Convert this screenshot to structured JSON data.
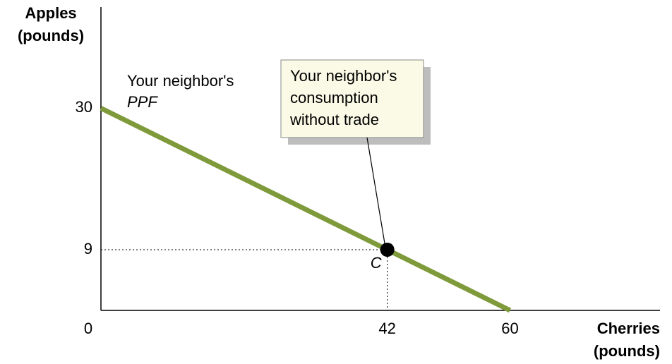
{
  "chart_data": {
    "type": "line",
    "x_label": [
      "Cherries",
      "(pounds)"
    ],
    "y_label": [
      "Apples",
      "(pounds)"
    ],
    "x": [
      0,
      60
    ],
    "series": [
      {
        "name": [
          "Your neighbor's",
          "PPF"
        ],
        "color": "#7f9a3a",
        "values": [
          30,
          0
        ]
      }
    ],
    "point": {
      "label": "C",
      "x": 42,
      "y": 9,
      "color": "#000000"
    },
    "callout": [
      "Your neighbor's",
      "consumption",
      "without trade"
    ],
    "xlim": [
      0,
      82
    ],
    "ylim": [
      0,
      45
    ],
    "xticks": [
      0,
      42,
      60
    ],
    "yticks": [
      9,
      30
    ]
  }
}
